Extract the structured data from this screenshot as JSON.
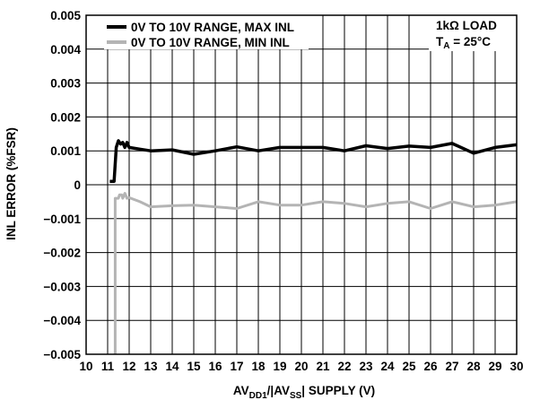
{
  "chart_data": {
    "type": "line",
    "xlabel": {
      "main": "AV",
      "sub1": "DD1",
      "mid": "/|AV",
      "sub2": "SS",
      "tail": "| SUPPLY (V)"
    },
    "ylabel": "INL ERROR (%FSR)",
    "xlim": [
      10,
      30
    ],
    "ylim": [
      -0.005,
      0.005
    ],
    "x_ticks": [
      10,
      11,
      12,
      13,
      14,
      15,
      16,
      17,
      18,
      19,
      20,
      21,
      22,
      23,
      24,
      25,
      26,
      27,
      28,
      29,
      30
    ],
    "y_ticks": [
      -0.005,
      -0.004,
      -0.003,
      -0.002,
      -0.001,
      0,
      0.001,
      0.002,
      0.003,
      0.004,
      0.005
    ],
    "y_tick_labels": [
      "−0.005",
      "−0.004",
      "−0.003",
      "−0.002",
      "−0.001",
      "0",
      "0.001",
      "0.002",
      "0.003",
      "0.004",
      "0.005"
    ],
    "grid": true,
    "legend_position": "top-left",
    "annotation": {
      "line1": "1kΩ LOAD",
      "ta_main": "T",
      "ta_sub": "A",
      "ta_rest": " = 25°C"
    },
    "series": [
      {
        "name": "0V TO 10V RANGE, MAX INL",
        "color": "#000000",
        "x": [
          11.1,
          11.3,
          11.4,
          11.5,
          11.6,
          11.7,
          11.8,
          11.9,
          12.0,
          12.5,
          13.0,
          14.0,
          15.0,
          16.0,
          17.0,
          18.0,
          19.0,
          20.0,
          21.0,
          22.0,
          23.0,
          24.0,
          25.0,
          26.0,
          27.0,
          28.0,
          29.0,
          30.0
        ],
        "y": [
          0.0001,
          0.0001,
          0.0011,
          0.0013,
          0.0012,
          0.00125,
          0.0011,
          0.00125,
          0.0011,
          0.00105,
          0.001,
          0.00103,
          0.0009,
          0.001,
          0.00112,
          0.001,
          0.0011,
          0.0011,
          0.0011,
          0.001,
          0.00115,
          0.00107,
          0.00114,
          0.0011,
          0.00122,
          0.00093,
          0.0011,
          0.00118
        ]
      },
      {
        "name": "0V TO 10V RANGE, MIN INL",
        "color": "#b4b4b4",
        "x": [
          11.35,
          11.35,
          11.5,
          11.55,
          11.65,
          11.7,
          11.8,
          11.9,
          12.0,
          12.5,
          13.0,
          14.0,
          15.0,
          16.0,
          17.0,
          18.0,
          19.0,
          20.0,
          21.0,
          22.0,
          23.0,
          24.0,
          25.0,
          26.0,
          27.0,
          28.0,
          29.0,
          30.0
        ],
        "y": [
          -0.005,
          -0.0004,
          -0.0004,
          -0.0003,
          -0.0003,
          -0.0004,
          -0.00025,
          -0.0004,
          -0.00038,
          -0.0005,
          -0.00065,
          -0.00062,
          -0.0006,
          -0.00065,
          -0.0007,
          -0.0005,
          -0.0006,
          -0.0006,
          -0.0005,
          -0.00055,
          -0.00065,
          -0.00055,
          -0.0005,
          -0.0007,
          -0.0005,
          -0.00065,
          -0.0006,
          -0.0005
        ]
      }
    ]
  }
}
